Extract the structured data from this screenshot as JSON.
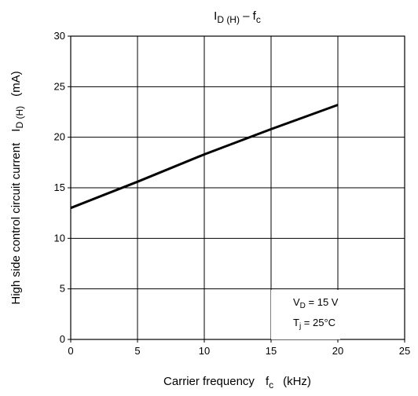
{
  "chart_data": {
    "type": "line",
    "title": {
      "main": "I",
      "sub": "D (H)",
      "dash": " – ",
      "main2": "f",
      "sub2": "c"
    },
    "xlabel": {
      "text": "Carrier frequency",
      "symbol": "f",
      "symbol_sub": "c",
      "unit": "(kHz)"
    },
    "ylabel": {
      "text": "High side control circuit current",
      "symbol": "I",
      "symbol_sub": "D (H)",
      "unit": "(mA)"
    },
    "xlim": [
      0,
      25
    ],
    "ylim": [
      0,
      30
    ],
    "xticks": [
      0,
      5,
      10,
      15,
      20,
      25
    ],
    "yticks": [
      0,
      5,
      10,
      15,
      20,
      25,
      30
    ],
    "grid": true,
    "series": [
      {
        "x": [
          0,
          5,
          10,
          15,
          20
        ],
        "y": [
          13.0,
          15.6,
          18.3,
          20.8,
          23.2
        ],
        "color": "#000000"
      }
    ],
    "annotations": [
      {
        "symbol": "V",
        "sub": "D",
        "text": " = 15 V"
      },
      {
        "symbol": "T",
        "sub": "j",
        "text": " = 25°C"
      }
    ]
  }
}
